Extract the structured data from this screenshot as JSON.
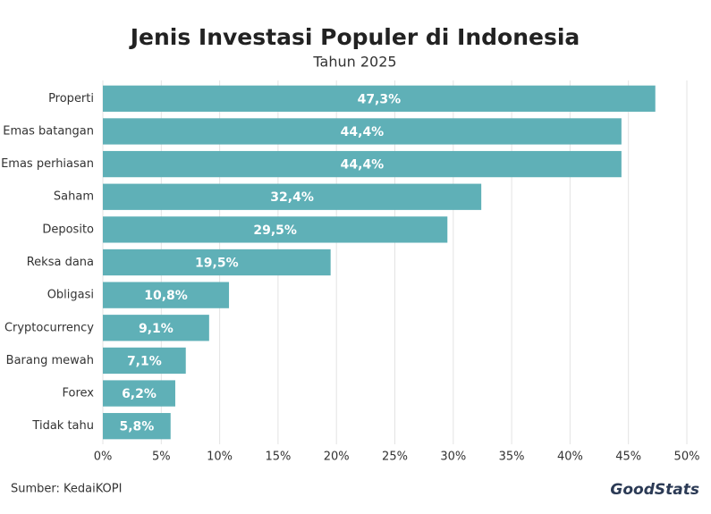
{
  "chart_data": {
    "type": "hbar",
    "title": "Jenis Investasi Populer di Indonesia",
    "subtitle": "Tahun 2025",
    "categories": [
      "Properti",
      "Emas batangan",
      "Emas perhiasan",
      "Saham",
      "Deposito",
      "Reksa dana",
      "Obligasi",
      "Cryptocurrency",
      "Barang mewah",
      "Forex",
      "Tidak tahu"
    ],
    "values": [
      47.3,
      44.4,
      44.4,
      32.4,
      29.5,
      19.5,
      10.8,
      9.1,
      7.1,
      6.2,
      5.8
    ],
    "value_labels": [
      "47,3%",
      "44,4%",
      "44,4%",
      "32,4%",
      "29,5%",
      "19,5%",
      "10,8%",
      "9,1%",
      "7,1%",
      "6,2%",
      "5,8%"
    ],
    "color": "#5fb0b7",
    "xlim": [
      0,
      50
    ],
    "xticks": [
      {
        "value": 0,
        "label": "0%"
      },
      {
        "value": 5,
        "label": "5%"
      },
      {
        "value": 10,
        "label": "10%"
      },
      {
        "value": 15,
        "label": "15%"
      },
      {
        "value": 20,
        "label": "20%"
      },
      {
        "value": 25,
        "label": "25%"
      },
      {
        "value": 30,
        "label": "30%"
      },
      {
        "value": 35,
        "label": "35%"
      },
      {
        "value": 40,
        "label": "40%"
      },
      {
        "value": 45,
        "label": "45%"
      },
      {
        "value": 50,
        "label": "50%"
      }
    ],
    "grid": true,
    "source": "Sumber: KedaiKOPI",
    "logo": "GoodStats"
  }
}
